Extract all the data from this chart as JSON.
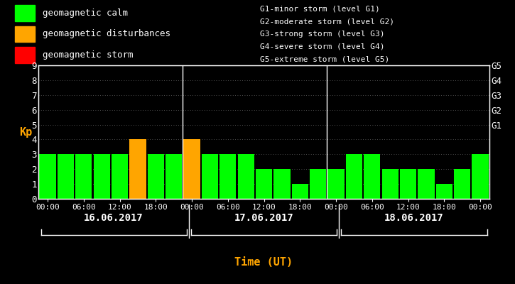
{
  "bg_color": "#000000",
  "bar_color_calm": "#00ff00",
  "bar_color_disturbance": "#ffa500",
  "bar_color_storm": "#ff0000",
  "title_color": "#ffa500",
  "text_color": "#ffffff",
  "ylabel_color": "#ffa500",
  "ylabel": "Kp",
  "xlabel": "Time (UT)",
  "ylim": [
    0,
    9
  ],
  "yticks": [
    0,
    1,
    2,
    3,
    4,
    5,
    6,
    7,
    8,
    9
  ],
  "days": [
    "16.06.2017",
    "17.06.2017",
    "18.06.2017"
  ],
  "kp_values": [
    3,
    3,
    3,
    3,
    3,
    4,
    3,
    3,
    4,
    3,
    3,
    3,
    2,
    2,
    1,
    2,
    2,
    3,
    3,
    2,
    2,
    2,
    1,
    2,
    3
  ],
  "kp_colors": [
    "green",
    "green",
    "green",
    "green",
    "green",
    "orange",
    "green",
    "green",
    "orange",
    "green",
    "green",
    "green",
    "green",
    "green",
    "green",
    "green",
    "green",
    "green",
    "green",
    "green",
    "green",
    "green",
    "green",
    "green",
    "green"
  ],
  "xtick_labels": [
    "00:00",
    "06:00",
    "12:00",
    "18:00",
    "00:00",
    "06:00",
    "12:00",
    "18:00",
    "00:00",
    "06:00",
    "12:00",
    "18:00",
    "00:00"
  ],
  "right_ytick_labels": [
    "G1",
    "G2",
    "G3",
    "G4",
    "G5"
  ],
  "right_ytick_positions": [
    5,
    6,
    7,
    8,
    9
  ],
  "legend_items": [
    {
      "label": "geomagnetic calm",
      "color": "#00ff00"
    },
    {
      "label": "geomagnetic disturbances",
      "color": "#ffa500"
    },
    {
      "label": "geomagnetic storm",
      "color": "#ff0000"
    }
  ],
  "right_legend_lines": [
    "G1-minor storm (level G1)",
    "G2-moderate storm (level G2)",
    "G3-strong storm (level G3)",
    "G4-severe storm (level G4)",
    "G5-extreme storm (level G5)"
  ],
  "vline_positions": [
    8,
    16
  ],
  "n_bars": 25,
  "xtick_positions": [
    0,
    2,
    4,
    6,
    8,
    10,
    12,
    14,
    16,
    18,
    20,
    22,
    24
  ]
}
